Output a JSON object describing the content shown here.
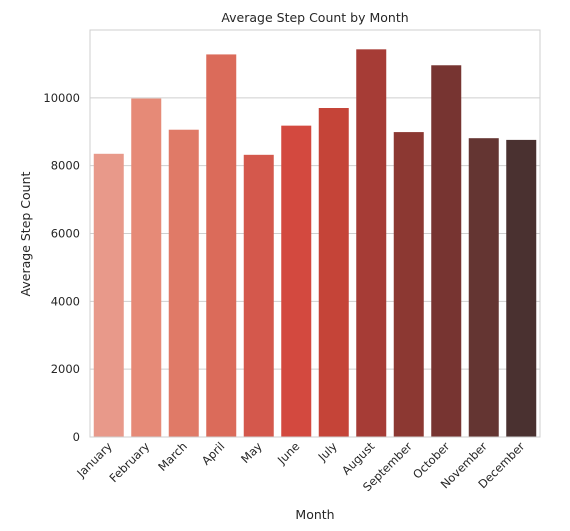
{
  "chart_data": {
    "type": "bar",
    "title": "Average Step Count by Month",
    "xlabel": "Month",
    "ylabel": "Average Step Count",
    "categories": [
      "January",
      "February",
      "March",
      "April",
      "May",
      "June",
      "July",
      "August",
      "September",
      "October",
      "November",
      "December"
    ],
    "values": [
      8350,
      9980,
      9060,
      11280,
      8320,
      9180,
      9700,
      11430,
      8990,
      10960,
      8810,
      8760
    ],
    "yticks": [
      0,
      2000,
      4000,
      6000,
      8000,
      10000
    ],
    "ylim": [
      0,
      12000
    ],
    "grid": "horizontal",
    "colors": [
      "#e8998a",
      "#e68a77",
      "#e07a67",
      "#db6b5a",
      "#d4584c",
      "#d3493f",
      "#c54438",
      "#a63c36",
      "#8c3832",
      "#773431",
      "#643532",
      "#4a3130"
    ]
  }
}
